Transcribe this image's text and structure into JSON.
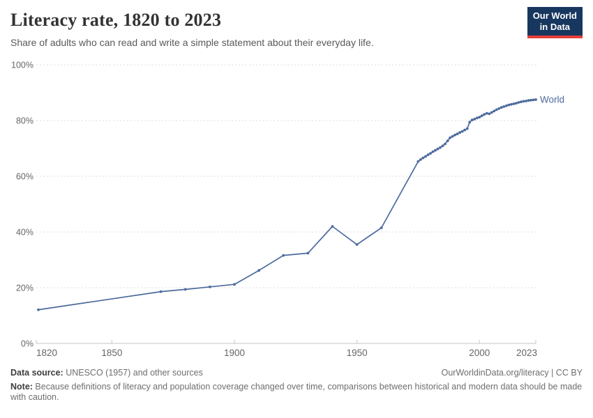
{
  "header": {
    "title": "Literacy rate, 1820 to 2023",
    "subtitle": "Share of adults who can read and write a simple statement about their everyday life.",
    "logo": {
      "line1": "Our World",
      "line2": "in Data",
      "bg_color": "#18375f",
      "accent_color": "#e63e36"
    }
  },
  "chart_data": {
    "type": "line",
    "title": "Literacy rate, 1820 to 2023",
    "xlabel": "",
    "ylabel": "",
    "xlim": [
      1820,
      2023
    ],
    "ylim": [
      0,
      100
    ],
    "x_ticks": [
      1820,
      1850,
      1900,
      1950,
      2000,
      2023
    ],
    "y_ticks": [
      0,
      20,
      40,
      60,
      80,
      100
    ],
    "y_tick_suffix": "%",
    "grid": "horizontal-dashed",
    "legend_position": "end-of-line-label",
    "series": [
      {
        "name": "World",
        "color": "#4c6a9d",
        "points": [
          [
            1820,
            12.1
          ],
          [
            1870,
            18.6
          ],
          [
            1880,
            19.4
          ],
          [
            1890,
            20.3
          ],
          [
            1900,
            21.2
          ],
          [
            1910,
            26.2
          ],
          [
            1920,
            31.6
          ],
          [
            1930,
            32.4
          ],
          [
            1940,
            42.0
          ],
          [
            1950,
            35.5
          ],
          [
            1960,
            41.5
          ],
          [
            1975,
            65.3
          ],
          [
            1976,
            66.0
          ],
          [
            1977,
            66.6
          ],
          [
            1978,
            67.1
          ],
          [
            1979,
            67.7
          ],
          [
            1980,
            68.2
          ],
          [
            1981,
            68.8
          ],
          [
            1982,
            69.3
          ],
          [
            1983,
            69.8
          ],
          [
            1984,
            70.3
          ],
          [
            1985,
            70.9
          ],
          [
            1986,
            71.6
          ],
          [
            1987,
            72.7
          ],
          [
            1988,
            73.8
          ],
          [
            1989,
            74.3
          ],
          [
            1990,
            74.8
          ],
          [
            1991,
            75.2
          ],
          [
            1992,
            75.7
          ],
          [
            1993,
            76.1
          ],
          [
            1994,
            76.6
          ],
          [
            1995,
            77.1
          ],
          [
            1996,
            79.4
          ],
          [
            1997,
            80.2
          ],
          [
            1998,
            80.5
          ],
          [
            1999,
            80.9
          ],
          [
            2000,
            81.2
          ],
          [
            2001,
            81.7
          ],
          [
            2002,
            82.2
          ],
          [
            2003,
            82.6
          ],
          [
            2004,
            82.4
          ],
          [
            2005,
            82.9
          ],
          [
            2006,
            83.4
          ],
          [
            2007,
            83.9
          ],
          [
            2008,
            84.3
          ],
          [
            2009,
            84.7
          ],
          [
            2010,
            85.0
          ],
          [
            2011,
            85.3
          ],
          [
            2012,
            85.6
          ],
          [
            2013,
            85.8
          ],
          [
            2014,
            86.0
          ],
          [
            2015,
            86.2
          ],
          [
            2016,
            86.5
          ],
          [
            2017,
            86.7
          ],
          [
            2018,
            86.9
          ],
          [
            2019,
            87.0
          ],
          [
            2020,
            87.2
          ],
          [
            2021,
            87.3
          ],
          [
            2022,
            87.4
          ],
          [
            2023,
            87.5
          ]
        ]
      }
    ]
  },
  "footer": {
    "datasource_label": "Data source:",
    "datasource_text": " UNESCO (1957) and other sources",
    "link_text": "OurWorldinData.org/literacy | CC BY",
    "note_label": "Note:",
    "note_text": " Because definitions of literacy and population coverage changed over time, comparisons between historical and modern data should be made with caution."
  },
  "colors": {
    "line": "#4c6a9d",
    "axis_text": "#666666",
    "axis_line": "#c6c6c6",
    "gridline": "#dcdcdc",
    "title_text": "#333333",
    "footer_text": "#6e6e6e"
  }
}
